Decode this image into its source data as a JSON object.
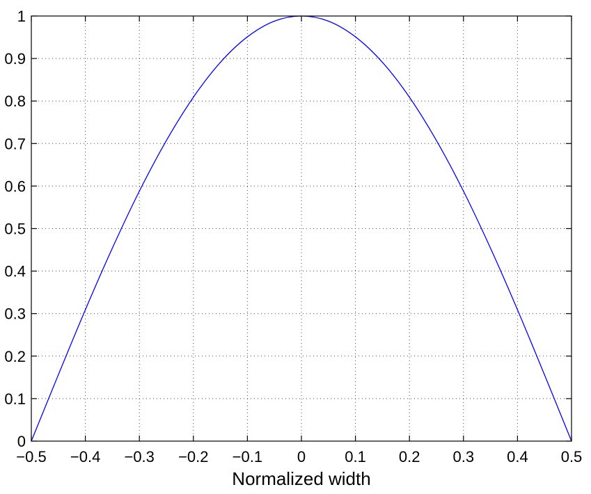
{
  "chart_data": {
    "type": "line",
    "title": "",
    "xlabel": "Normalized width",
    "ylabel": "",
    "xlim": [
      -0.5,
      0.5
    ],
    "ylim": [
      0,
      1
    ],
    "grid": true,
    "x_ticks": [
      -0.5,
      -0.4,
      -0.3,
      -0.2,
      -0.1,
      0,
      0.1,
      0.2,
      0.3,
      0.4,
      0.5
    ],
    "x_tick_labels": [
      "−0.5",
      "−0.4",
      "−0.3",
      "−0.2",
      "−0.1",
      "0",
      "0.1",
      "0.2",
      "0.3",
      "0.4",
      "0.5"
    ],
    "y_ticks": [
      0,
      0.1,
      0.2,
      0.3,
      0.4,
      0.5,
      0.6,
      0.7,
      0.8,
      0.9,
      1
    ],
    "y_tick_labels": [
      "0",
      "0.1",
      "0.2",
      "0.3",
      "0.4",
      "0.5",
      "0.6",
      "0.7",
      "0.8",
      "0.9",
      "1"
    ],
    "series": [
      {
        "color": "#0000ff",
        "x": [
          -0.5,
          -0.45,
          -0.4,
          -0.35,
          -0.3,
          -0.25,
          -0.2,
          -0.15,
          -0.1,
          -0.05,
          0,
          0.05,
          0.1,
          0.15,
          0.2,
          0.25,
          0.3,
          0.35,
          0.4,
          0.45,
          0.5
        ],
        "y": [
          0,
          0.156,
          0.309,
          0.454,
          0.588,
          0.707,
          0.809,
          0.891,
          0.951,
          0.988,
          1,
          0.988,
          0.951,
          0.891,
          0.809,
          0.707,
          0.588,
          0.454,
          0.309,
          0.156,
          0
        ]
      }
    ]
  }
}
